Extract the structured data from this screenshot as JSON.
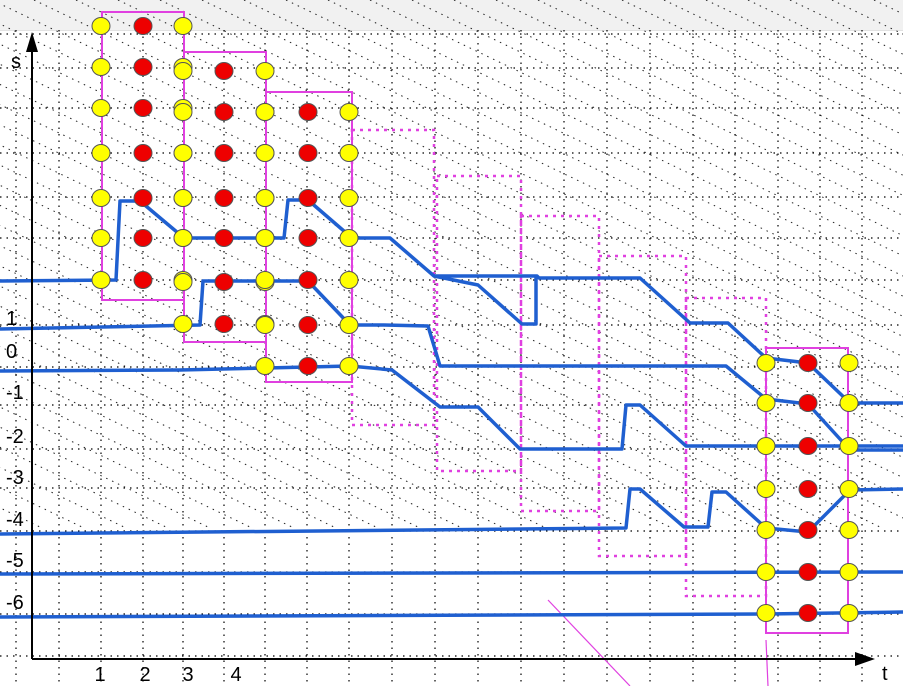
{
  "axes": {
    "x_label": "t",
    "y_label": "s",
    "x_ticks": [
      "1",
      "2",
      "3",
      "4"
    ],
    "y_ticks": [
      "1",
      "0",
      "-1",
      "-2",
      "-3",
      "-4",
      "-5",
      "-6"
    ]
  },
  "colors": {
    "trajectory": "#1f5fd0",
    "box": "#e040e0",
    "node_yellow": "#ffff00",
    "node_red": "#ee0000",
    "grid": "#000000",
    "diagonal_line": "#e040e0"
  }
}
